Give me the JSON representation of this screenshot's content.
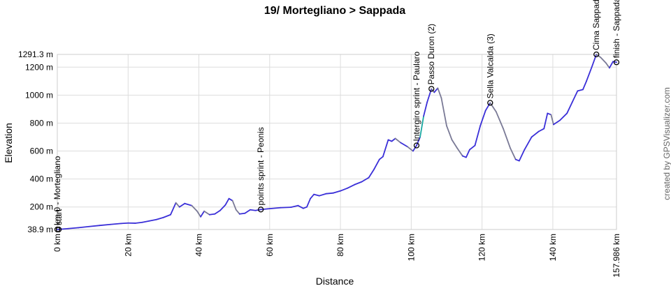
{
  "chart_data": {
    "type": "line",
    "title": "19/ Mortegliano > Sappada",
    "xlabel": "Distance",
    "ylabel": "Elevation",
    "credit": "created by GPSVisualizer.com",
    "xlim": [
      0,
      157.986
    ],
    "ylim": [
      38.9,
      1291.3
    ],
    "grid": true,
    "y_ticks": [
      {
        "value": 38.9,
        "label": "38.9 m"
      },
      {
        "value": 200,
        "label": "200 m"
      },
      {
        "value": 400,
        "label": "400 m"
      },
      {
        "value": 600,
        "label": "600 m"
      },
      {
        "value": 800,
        "label": "800 m"
      },
      {
        "value": 1000,
        "label": "1000 m"
      },
      {
        "value": 1200,
        "label": "1200 m"
      },
      {
        "value": 1291.3,
        "label": "1291.3 m"
      }
    ],
    "x_ticks": [
      {
        "value": 0,
        "label": "0 km"
      },
      {
        "value": 20,
        "label": "20 km"
      },
      {
        "value": 40,
        "label": "40 km"
      },
      {
        "value": 60,
        "label": "60 km"
      },
      {
        "value": 80,
        "label": "80 km"
      },
      {
        "value": 100,
        "label": "100 km"
      },
      {
        "value": 120,
        "label": "120 km"
      },
      {
        "value": 140,
        "label": "140 km"
      },
      {
        "value": 157.986,
        "label": "157.986 km"
      }
    ],
    "colors": {
      "line_main": "#3a2fd8",
      "line_descent": "#7a7a96",
      "line_steep": "#1aa7a0",
      "grid": "#dddddd",
      "marker": "#000000"
    },
    "series": [
      {
        "values": [
          [
            0,
            39
          ],
          [
            3,
            45
          ],
          [
            6,
            52
          ],
          [
            9,
            60
          ],
          [
            12,
            68
          ],
          [
            15,
            75
          ],
          [
            18,
            82
          ],
          [
            20,
            85
          ],
          [
            22,
            84
          ],
          [
            24,
            90
          ],
          [
            26,
            100
          ],
          [
            28,
            110
          ],
          [
            30,
            125
          ],
          [
            32,
            145
          ],
          [
            33.5,
            230
          ],
          [
            34.5,
            200
          ],
          [
            36,
            225
          ],
          [
            38,
            210
          ],
          [
            39.5,
            170
          ],
          [
            40.5,
            130
          ],
          [
            41.5,
            170
          ],
          [
            43,
            145
          ],
          [
            44.5,
            150
          ],
          [
            46,
            175
          ],
          [
            47.5,
            215
          ],
          [
            48.5,
            260
          ],
          [
            49.5,
            245
          ],
          [
            50.5,
            180
          ],
          [
            51.5,
            150
          ],
          [
            53,
            155
          ],
          [
            54.5,
            180
          ],
          [
            56,
            175
          ],
          [
            57.5,
            182
          ],
          [
            60,
            188
          ],
          [
            63,
            195
          ],
          [
            66,
            198
          ],
          [
            68,
            210
          ],
          [
            69.5,
            190
          ],
          [
            70.5,
            200
          ],
          [
            71.5,
            260
          ],
          [
            72.5,
            290
          ],
          [
            74,
            280
          ],
          [
            76,
            295
          ],
          [
            78,
            300
          ],
          [
            80,
            315
          ],
          [
            82,
            335
          ],
          [
            84,
            360
          ],
          [
            86,
            380
          ],
          [
            88,
            410
          ],
          [
            89.5,
            470
          ],
          [
            91,
            540
          ],
          [
            92,
            560
          ],
          [
            93.5,
            680
          ],
          [
            94.5,
            670
          ],
          [
            95.5,
            690
          ],
          [
            97,
            660
          ],
          [
            99,
            630
          ],
          [
            100.5,
            600
          ],
          [
            101.5,
            640
          ],
          [
            102.5,
            700
          ],
          [
            103.5,
            850
          ],
          [
            104.5,
            950
          ],
          [
            105.7,
            1045
          ],
          [
            106.5,
            1020
          ],
          [
            107.5,
            1050
          ],
          [
            108.5,
            980
          ],
          [
            110,
            780
          ],
          [
            111.5,
            680
          ],
          [
            113,
            620
          ],
          [
            114.5,
            565
          ],
          [
            115.5,
            555
          ],
          [
            116.5,
            610
          ],
          [
            118,
            640
          ],
          [
            119.5,
            780
          ],
          [
            121,
            890
          ],
          [
            122.3,
            945
          ],
          [
            124,
            880
          ],
          [
            126,
            760
          ],
          [
            128,
            620
          ],
          [
            129.5,
            540
          ],
          [
            130.5,
            530
          ],
          [
            132,
            610
          ],
          [
            134,
            700
          ],
          [
            136,
            740
          ],
          [
            137.5,
            760
          ],
          [
            138.5,
            870
          ],
          [
            139.5,
            860
          ],
          [
            140.2,
            790
          ],
          [
            142,
            820
          ],
          [
            144,
            870
          ],
          [
            145.5,
            950
          ],
          [
            147,
            1030
          ],
          [
            148.5,
            1040
          ],
          [
            149.5,
            1100
          ],
          [
            151,
            1200
          ],
          [
            152.3,
            1291.3
          ],
          [
            153.5,
            1270
          ],
          [
            155,
            1230
          ],
          [
            156,
            1195
          ],
          [
            157,
            1240
          ],
          [
            157.986,
            1235
          ]
        ]
      }
    ],
    "annotations": [
      {
        "label": "km 0 - Mortegliano",
        "x": 0,
        "y": 39
      },
      {
        "label": "start",
        "x": 0.4,
        "y": 39
      },
      {
        "label": "points sprint - Peonis",
        "x": 57.5,
        "y": 182
      },
      {
        "label": "Intergiro sprint - Paularo",
        "x": 101.5,
        "y": 640
      },
      {
        "label": "Passo Duron (2)",
        "x": 105.7,
        "y": 1045
      },
      {
        "label": "Sella Valcalda (3)",
        "x": 122.3,
        "y": 945
      },
      {
        "label": "Cima Sappada",
        "x": 152.3,
        "y": 1291.3
      },
      {
        "label": "finish - Sappada",
        "x": 157.986,
        "y": 1235
      }
    ]
  }
}
